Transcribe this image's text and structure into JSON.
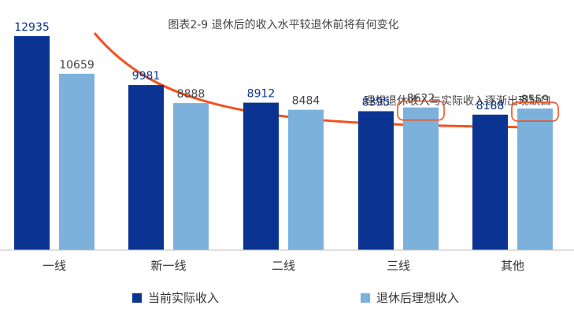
{
  "chart_data": {
    "type": "bar",
    "title": "图表2-9 退休后的收入水平较退休前将有何变化",
    "annotation": "理想退休收入与实际收入逐渐出现缺口",
    "categories": [
      "一线",
      "新一线",
      "二线",
      "三线",
      "其他"
    ],
    "series": [
      {
        "name": "当前实际收入",
        "values": [
          12935,
          9981,
          8912,
          8395,
          8188
        ],
        "color": "#0a3392"
      },
      {
        "name": "退休后理想收入",
        "values": [
          10659,
          8888,
          8484,
          8622,
          8559
        ],
        "color": "#7cb1db"
      }
    ],
    "ylim": [
      0,
      13500
    ],
    "grid": false,
    "legend": "bottom",
    "highlighted_categories": [
      "三线",
      "其他"
    ],
    "colors": {
      "arrow": "#f4511e",
      "highlight_box": "#f4511e",
      "label_dark": "#0a3392",
      "label_light": "#444444"
    }
  }
}
